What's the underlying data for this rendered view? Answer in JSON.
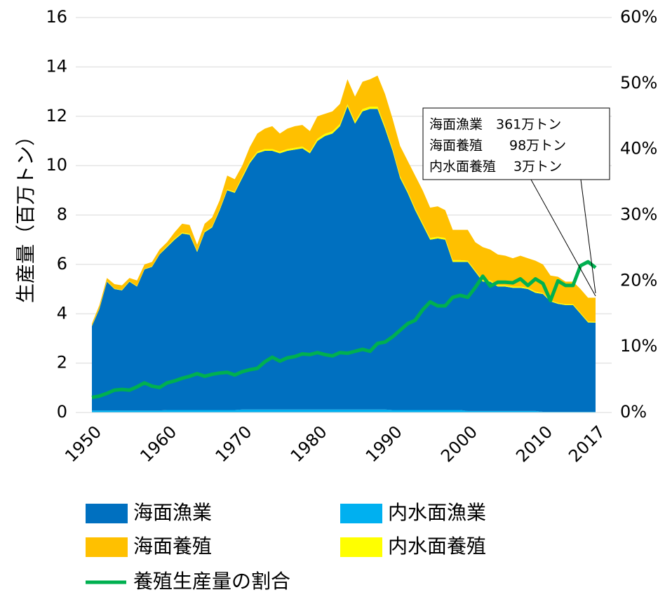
{
  "chart_data": {
    "type": "area",
    "ylabel": "生産量（百万トン）",
    "x": [
      1950,
      1951,
      1952,
      1953,
      1954,
      1955,
      1956,
      1957,
      1958,
      1959,
      1960,
      1961,
      1962,
      1963,
      1964,
      1965,
      1966,
      1967,
      1968,
      1969,
      1970,
      1971,
      1972,
      1973,
      1974,
      1975,
      1976,
      1977,
      1978,
      1979,
      1980,
      1981,
      1982,
      1983,
      1984,
      1985,
      1986,
      1987,
      1988,
      1989,
      1990,
      1991,
      1992,
      1993,
      1994,
      1995,
      1996,
      1997,
      1998,
      1999,
      2000,
      2001,
      2002,
      2003,
      2004,
      2005,
      2006,
      2007,
      2008,
      2009,
      2010,
      2011,
      2012,
      2013,
      2014,
      2015,
      2016,
      2017
    ],
    "xlim": [
      1950,
      2017
    ],
    "xticks": [
      1950,
      1960,
      1970,
      1980,
      1990,
      2000,
      2010,
      2017
    ],
    "ylim": [
      0,
      16
    ],
    "yticks": [
      0,
      2,
      4,
      6,
      8,
      10,
      12,
      14,
      16
    ],
    "y2lim": [
      0,
      60
    ],
    "y2ticks": [
      {
        "value": 0,
        "label": "0%"
      },
      {
        "value": 10,
        "label": "10%"
      },
      {
        "value": 20,
        "label": "20%"
      },
      {
        "value": 30,
        "label": "30%"
      },
      {
        "value": 40,
        "label": "40%"
      },
      {
        "value": 50,
        "label": "50%"
      },
      {
        "value": 60,
        "label": "60%"
      }
    ],
    "grid": true,
    "stacked": true,
    "series": [
      {
        "name": "内水面漁業",
        "color": "#00b0f0",
        "values": [
          0.08,
          0.08,
          0.08,
          0.08,
          0.08,
          0.08,
          0.08,
          0.08,
          0.08,
          0.08,
          0.1,
          0.1,
          0.1,
          0.1,
          0.1,
          0.1,
          0.1,
          0.1,
          0.1,
          0.1,
          0.12,
          0.12,
          0.12,
          0.12,
          0.12,
          0.12,
          0.12,
          0.12,
          0.12,
          0.12,
          0.12,
          0.12,
          0.12,
          0.12,
          0.12,
          0.12,
          0.12,
          0.12,
          0.12,
          0.12,
          0.1,
          0.1,
          0.1,
          0.1,
          0.1,
          0.1,
          0.1,
          0.1,
          0.1,
          0.1,
          0.06,
          0.06,
          0.06,
          0.06,
          0.06,
          0.06,
          0.06,
          0.06,
          0.06,
          0.06,
          0.03,
          0.03,
          0.03,
          0.03,
          0.03,
          0.03,
          0.03,
          0.03
        ]
      },
      {
        "name": "海面漁業",
        "color": "#0070c0",
        "values": [
          3.42,
          4.12,
          5.22,
          4.92,
          4.87,
          5.22,
          5.02,
          5.72,
          5.82,
          6.32,
          6.6,
          6.9,
          7.15,
          7.1,
          6.4,
          7.2,
          7.4,
          8.1,
          8.9,
          8.8,
          9.38,
          9.98,
          10.38,
          10.48,
          10.48,
          10.38,
          10.48,
          10.53,
          10.58,
          10.38,
          10.88,
          11.08,
          11.18,
          11.48,
          12.28,
          11.58,
          12.08,
          12.18,
          12.18,
          11.38,
          10.5,
          9.4,
          8.8,
          8.1,
          7.5,
          6.9,
          6.95,
          6.9,
          6.0,
          6.0,
          6.04,
          5.64,
          5.24,
          5.24,
          5.04,
          5.04,
          4.99,
          4.99,
          4.94,
          4.79,
          4.77,
          4.47,
          4.37,
          4.32,
          4.32,
          3.97,
          3.62,
          3.61
        ]
      },
      {
        "name": "内水面養殖",
        "color": "#ffff00",
        "values": [
          0.02,
          0.02,
          0.02,
          0.02,
          0.02,
          0.02,
          0.02,
          0.02,
          0.02,
          0.02,
          0.04,
          0.04,
          0.04,
          0.04,
          0.04,
          0.04,
          0.04,
          0.04,
          0.04,
          0.04,
          0.07,
          0.07,
          0.07,
          0.07,
          0.07,
          0.07,
          0.07,
          0.07,
          0.07,
          0.07,
          0.09,
          0.09,
          0.09,
          0.09,
          0.09,
          0.09,
          0.09,
          0.09,
          0.09,
          0.09,
          0.07,
          0.07,
          0.07,
          0.07,
          0.07,
          0.07,
          0.07,
          0.07,
          0.07,
          0.07,
          0.05,
          0.05,
          0.05,
          0.05,
          0.05,
          0.05,
          0.05,
          0.05,
          0.05,
          0.05,
          0.04,
          0.04,
          0.04,
          0.04,
          0.04,
          0.04,
          0.04,
          0.03
        ]
      },
      {
        "name": "海面養殖",
        "color": "#ffc000",
        "values": [
          0.08,
          0.13,
          0.13,
          0.18,
          0.18,
          0.13,
          0.23,
          0.18,
          0.18,
          0.18,
          0.16,
          0.26,
          0.36,
          0.36,
          0.26,
          0.31,
          0.36,
          0.36,
          0.56,
          0.51,
          0.43,
          0.58,
          0.73,
          0.83,
          0.93,
          0.73,
          0.83,
          0.88,
          0.88,
          0.83,
          0.91,
          0.81,
          0.81,
          0.81,
          1.01,
          1.01,
          1.11,
          1.11,
          1.26,
          1.31,
          1.23,
          1.23,
          1.23,
          1.33,
          1.33,
          1.23,
          1.23,
          1.13,
          1.23,
          1.23,
          1.25,
          1.15,
          1.35,
          1.25,
          1.25,
          1.2,
          1.15,
          1.25,
          1.2,
          1.25,
          1.16,
          1.01,
          1.06,
          0.91,
          0.91,
          0.96,
          0.96,
          0.98
        ]
      },
      {
        "name": "養殖生産量の割合",
        "type": "line",
        "axis": "y2",
        "color": "#00b050",
        "values": [
          2.3,
          2.5,
          2.9,
          3.4,
          3.5,
          3.4,
          3.9,
          4.5,
          4.0,
          3.8,
          4.5,
          4.8,
          5.2,
          5.5,
          5.9,
          5.5,
          5.8,
          6.0,
          6.1,
          5.7,
          6.2,
          6.5,
          6.7,
          7.7,
          8.4,
          7.8,
          8.3,
          8.5,
          8.9,
          8.8,
          9.1,
          8.8,
          8.6,
          9.1,
          9.0,
          9.3,
          9.6,
          9.3,
          10.5,
          10.7,
          11.5,
          12.5,
          13.5,
          14.0,
          15.6,
          16.8,
          16.2,
          16.2,
          17.5,
          17.8,
          17.5,
          19.0,
          20.7,
          19.2,
          19.8,
          19.8,
          19.7,
          20.3,
          19.3,
          20.3,
          19.6,
          17.0,
          20.0,
          19.3,
          19.3,
          22.3,
          22.9,
          22.0
        ]
      }
    ],
    "annotation": [
      "海面漁業　361万トン",
      "海面養殖　　98万トン",
      "内水面養殖　 3万トン"
    ]
  }
}
